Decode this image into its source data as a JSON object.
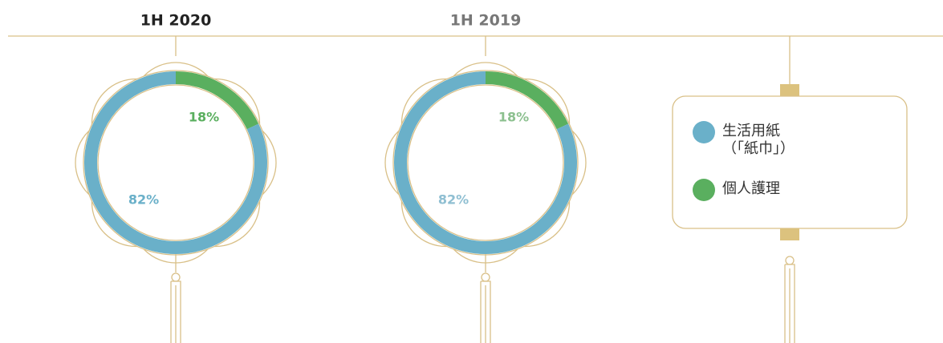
{
  "chart_data": [
    {
      "type": "donut",
      "title": "1H 2020",
      "categories": [
        "生活用紙（「紙巾」）",
        "個人護理"
      ],
      "values": [
        82,
        18
      ],
      "value_labels": [
        "82%",
        "18%"
      ],
      "colors": [
        "#6ab0c9",
        "#5aaf5f"
      ]
    },
    {
      "type": "donut",
      "title": "1H 2019",
      "values": [
        82,
        18
      ],
      "value_labels": [
        "82%",
        "18%"
      ],
      "colors": [
        "#6ab0c9",
        "#5aaf5f"
      ]
    }
  ]
}
